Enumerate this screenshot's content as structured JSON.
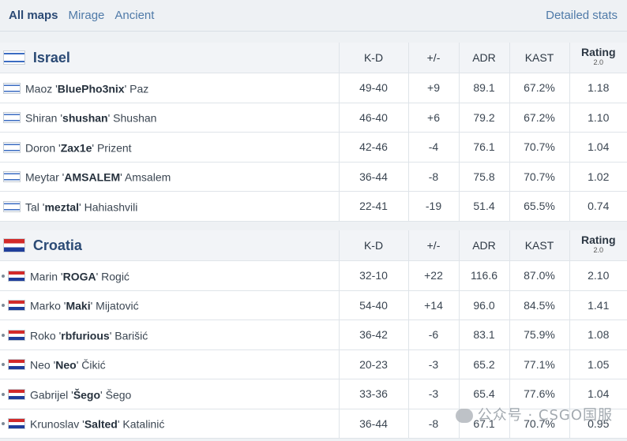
{
  "tabs": [
    "All maps",
    "Mirage",
    "Ancient"
  ],
  "detailed_stats": "Detailed stats",
  "columns": {
    "kd": "K-D",
    "pm": "+/-",
    "adr": "ADR",
    "kast": "KAST",
    "rating": "Rating",
    "rating_sub": "2.0"
  },
  "teams": [
    {
      "name": "Israel",
      "flag_icon": "israel-flag-icon",
      "players": [
        {
          "first": "Maoz '",
          "nick": "BluePho3nix",
          "last": "' Paz",
          "kd": "49-40",
          "pm": "+9",
          "adr": "89.1",
          "kast": "67.2%",
          "rating": "1.18"
        },
        {
          "first": "Shiran '",
          "nick": "shushan",
          "last": "' Shushan",
          "kd": "46-40",
          "pm": "+6",
          "adr": "79.2",
          "kast": "67.2%",
          "rating": "1.10"
        },
        {
          "first": "Doron '",
          "nick": "Zax1e",
          "last": "' Prizent",
          "kd": "42-46",
          "pm": "-4",
          "adr": "76.1",
          "kast": "70.7%",
          "rating": "1.04"
        },
        {
          "first": "Meytar '",
          "nick": "AMSALEM",
          "last": "' Amsalem",
          "kd": "36-44",
          "pm": "-8",
          "adr": "75.8",
          "kast": "70.7%",
          "rating": "1.02"
        },
        {
          "first": "Tal '",
          "nick": "meztal",
          "last": "' Hahiashvili",
          "kd": "22-41",
          "pm": "-19",
          "adr": "51.4",
          "kast": "65.5%",
          "rating": "0.74"
        }
      ]
    },
    {
      "name": "Croatia",
      "flag_icon": "croatia-flag-icon",
      "players": [
        {
          "first": "Marin '",
          "nick": "ROGA",
          "last": "' Rogić",
          "kd": "32-10",
          "pm": "+22",
          "adr": "116.6",
          "kast": "87.0%",
          "rating": "2.10"
        },
        {
          "first": "Marko '",
          "nick": "Maki",
          "last": "' Mijatović",
          "kd": "54-40",
          "pm": "+14",
          "adr": "96.0",
          "kast": "84.5%",
          "rating": "1.41"
        },
        {
          "first": "Roko '",
          "nick": "rbfurious",
          "last": "' Barišić",
          "kd": "36-42",
          "pm": "-6",
          "adr": "83.1",
          "kast": "75.9%",
          "rating": "1.08"
        },
        {
          "first": "Neo '",
          "nick": "Neo",
          "last": "' Čikić",
          "kd": "20-23",
          "pm": "-3",
          "adr": "65.2",
          "kast": "77.1%",
          "rating": "1.05"
        },
        {
          "first": "Gabrijel '",
          "nick": "Šego",
          "last": "' Šego",
          "kd": "33-36",
          "pm": "-3",
          "adr": "65.4",
          "kast": "77.6%",
          "rating": "1.04"
        },
        {
          "first": "Krunoslav '",
          "nick": "Salted",
          "last": "' Katalinić",
          "kd": "36-44",
          "pm": "-8",
          "adr": "67.1",
          "kast": "70.7%",
          "rating": "0.95"
        }
      ]
    }
  ],
  "watermark": "公众号 · CSGO国服"
}
